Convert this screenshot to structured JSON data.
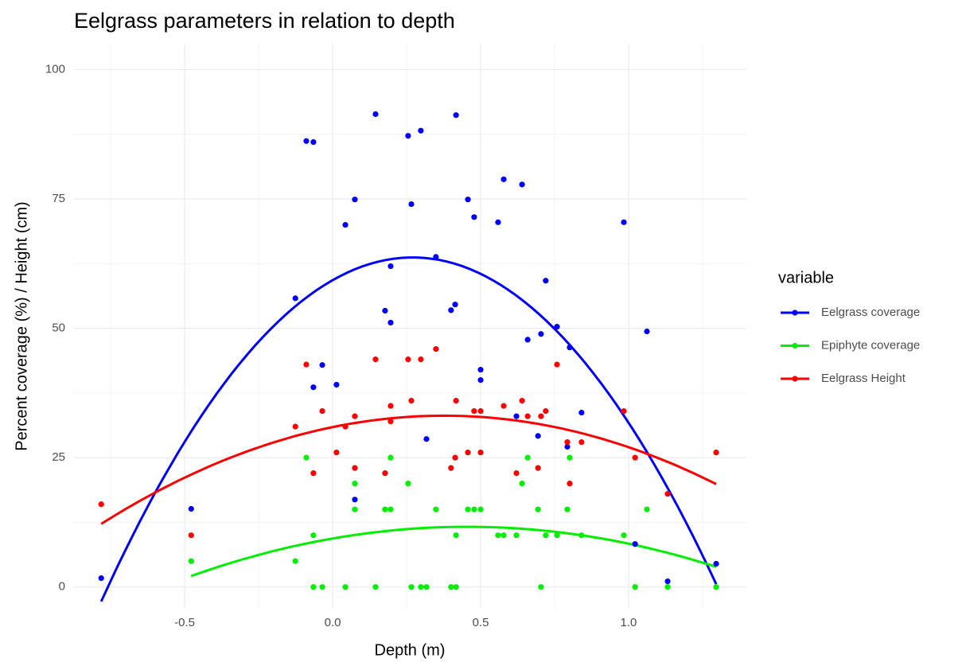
{
  "chart_data": {
    "type": "scatter",
    "title": "Eelgrass parameters in relation to depth",
    "x_label": "Depth (m)",
    "y_label": "Percent coverage (%) / Height (cm)",
    "legend_title": "variable",
    "legend": "right",
    "grid": true,
    "smooth": true,
    "xlim": [
      -0.874,
      1.398
    ],
    "ylim": [
      -4.2,
      105
    ],
    "xticks": [
      -0.5,
      {
        "value": 0,
        "label": "0.0"
      },
      0.5,
      {
        "value": 1,
        "label": "1.0"
      }
    ],
    "yticks": [
      0,
      25,
      50,
      75,
      100
    ],
    "series": [
      {
        "name": "Eelgrass coverage",
        "color": "#0000ff",
        "x": [
          -0.782,
          -0.478,
          -0.126,
          -0.089,
          -0.065,
          -0.065,
          -0.035,
          0.013,
          0.043,
          0.075,
          0.075,
          0.145,
          0.177,
          0.196,
          0.196,
          0.255,
          0.266,
          0.298,
          0.317,
          0.349,
          0.4,
          0.414,
          0.417,
          0.457,
          0.478,
          0.5,
          0.5,
          0.559,
          0.578,
          0.621,
          0.64,
          0.659,
          0.694,
          0.704,
          0.72,
          0.758,
          0.793,
          0.801,
          0.841,
          0.984,
          1.022,
          1.062,
          1.132,
          1.296
        ],
        "values": [
          1.7,
          15.1,
          55.8,
          86.2,
          86.0,
          38.6,
          42.9,
          39.1,
          70.0,
          74.9,
          16.9,
          91.4,
          53.4,
          51.1,
          62.0,
          87.2,
          74.0,
          88.2,
          28.6,
          63.8,
          53.5,
          54.6,
          91.2,
          74.9,
          71.5,
          42.0,
          40.0,
          70.5,
          78.8,
          33.0,
          77.8,
          47.8,
          29.2,
          48.9,
          59.2,
          50.3,
          27.1,
          46.3,
          33.7,
          70.5,
          8.3,
          49.4,
          1.1,
          4.5
        ]
      },
      {
        "name": "Epiphyte coverage",
        "color": "#00ee00",
        "x": [
          -0.478,
          -0.126,
          -0.089,
          -0.065,
          -0.065,
          -0.035,
          0.043,
          0.075,
          0.075,
          0.145,
          0.177,
          0.196,
          0.196,
          0.255,
          0.266,
          0.298,
          0.317,
          0.349,
          0.4,
          0.417,
          0.417,
          0.457,
          0.478,
          0.5,
          0.559,
          0.578,
          0.621,
          0.64,
          0.659,
          0.694,
          0.704,
          0.72,
          0.758,
          0.793,
          0.801,
          0.841,
          0.984,
          1.022,
          1.062,
          1.132,
          1.296
        ],
        "values": [
          5,
          5,
          25,
          10,
          0,
          0,
          0,
          20,
          15,
          0,
          15,
          15,
          25,
          20,
          0,
          0,
          0,
          15,
          0,
          0,
          10,
          15,
          15,
          15,
          10,
          10,
          10,
          20,
          25,
          15,
          0,
          10,
          10,
          15,
          25,
          10,
          10,
          0,
          15,
          0,
          0
        ]
      },
      {
        "name": "Eelgrass Height",
        "color": "#ff0000",
        "x": [
          -0.782,
          -0.478,
          -0.126,
          -0.089,
          -0.065,
          -0.035,
          0.013,
          0.043,
          0.075,
          0.075,
          0.145,
          0.177,
          0.196,
          0.196,
          0.255,
          0.266,
          0.298,
          0.349,
          0.4,
          0.414,
          0.417,
          0.457,
          0.478,
          0.5,
          0.5,
          0.578,
          0.621,
          0.64,
          0.659,
          0.694,
          0.704,
          0.72,
          0.758,
          0.793,
          0.801,
          0.841,
          0.984,
          1.022,
          1.132,
          1.296
        ],
        "values": [
          16,
          10,
          31,
          43,
          22,
          34,
          26,
          31,
          33,
          23,
          44,
          22,
          35,
          32,
          44,
          36,
          44,
          46,
          23,
          25,
          36,
          26,
          34,
          34,
          26,
          35,
          22,
          36,
          33,
          23,
          33,
          34,
          43,
          28,
          20,
          28,
          34,
          25,
          18,
          26
        ]
      }
    ]
  }
}
